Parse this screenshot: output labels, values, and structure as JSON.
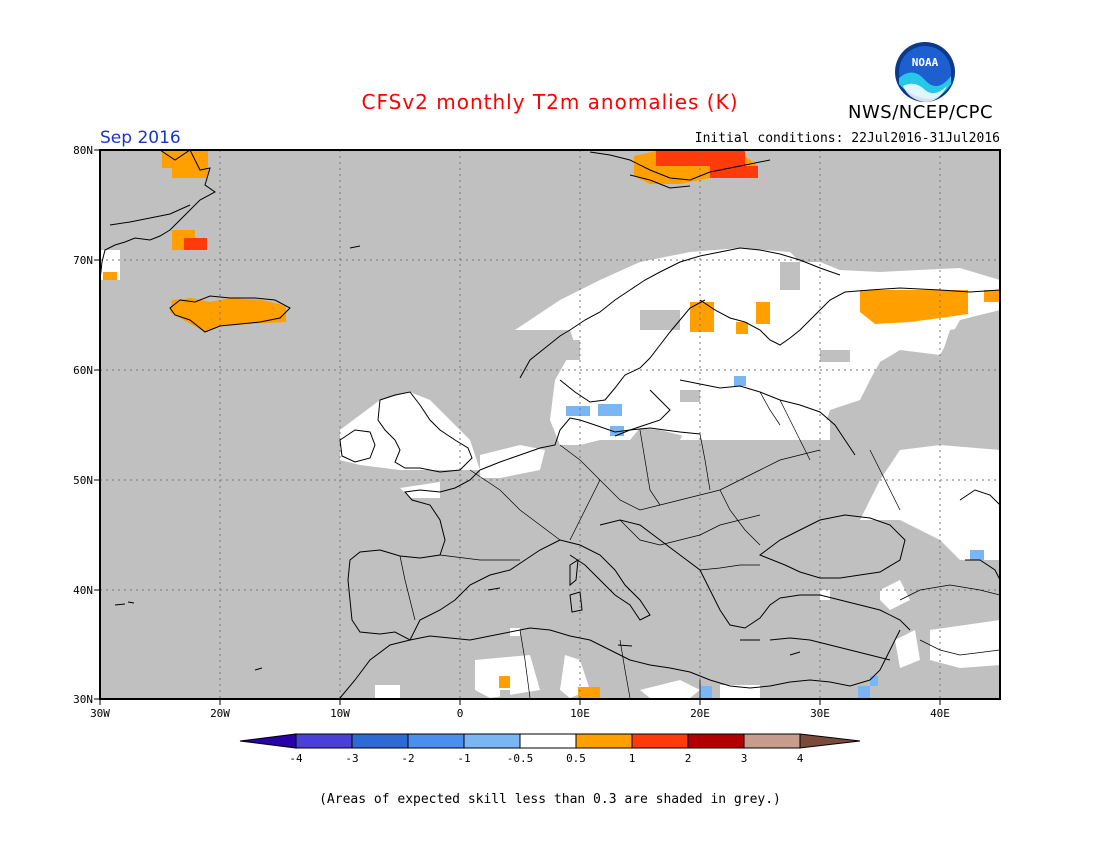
{
  "header": {
    "title": "CFSv2 monthly T2m anomalies (K)",
    "agency": "NWS/NCEP/CPC",
    "logo_text": "NOAA",
    "period": "Sep 2016",
    "initial_conditions": "Initial conditions: 22Jul2016-31Jul2016"
  },
  "colors": {
    "title": "#ff0000",
    "period": "#1a35cc",
    "low_skill_grey": "#c0c0c0",
    "neutral": "#ffffff",
    "coastline": "#000000"
  },
  "map": {
    "lat_labels": [
      "80N",
      "70N",
      "60N",
      "50N",
      "40N",
      "30N"
    ],
    "lon_labels": [
      "30W",
      "20W",
      "10W",
      "0",
      "10E",
      "20E",
      "30E",
      "40E"
    ],
    "lat_values": [
      80,
      70,
      60,
      50,
      40,
      30
    ],
    "lon_values": [
      -30,
      -20,
      -10,
      0,
      10,
      20,
      30,
      40
    ],
    "lon_range": [
      -30,
      45
    ],
    "lat_range": [
      30,
      80
    ]
  },
  "colorbar": {
    "bins": [
      {
        "color": "#2a00a8"
      },
      {
        "color": "#4a3fd8"
      },
      {
        "color": "#2e6ad6"
      },
      {
        "color": "#4a8ef0"
      },
      {
        "color": "#7ab6f4"
      },
      {
        "color": "#ffffff"
      },
      {
        "color": "#ff9f00"
      },
      {
        "color": "#ff3b0a"
      },
      {
        "color": "#b20000"
      },
      {
        "color": "#c89c8c"
      },
      {
        "color": "#7a4a3a"
      }
    ],
    "tick_labels": [
      "-4",
      "-3",
      "-2",
      "-1",
      "-0.5",
      "0.5",
      "1",
      "2",
      "3",
      "4"
    ]
  },
  "footnote": "(Areas of expected skill less than 0.3 are shaded in grey.)"
}
